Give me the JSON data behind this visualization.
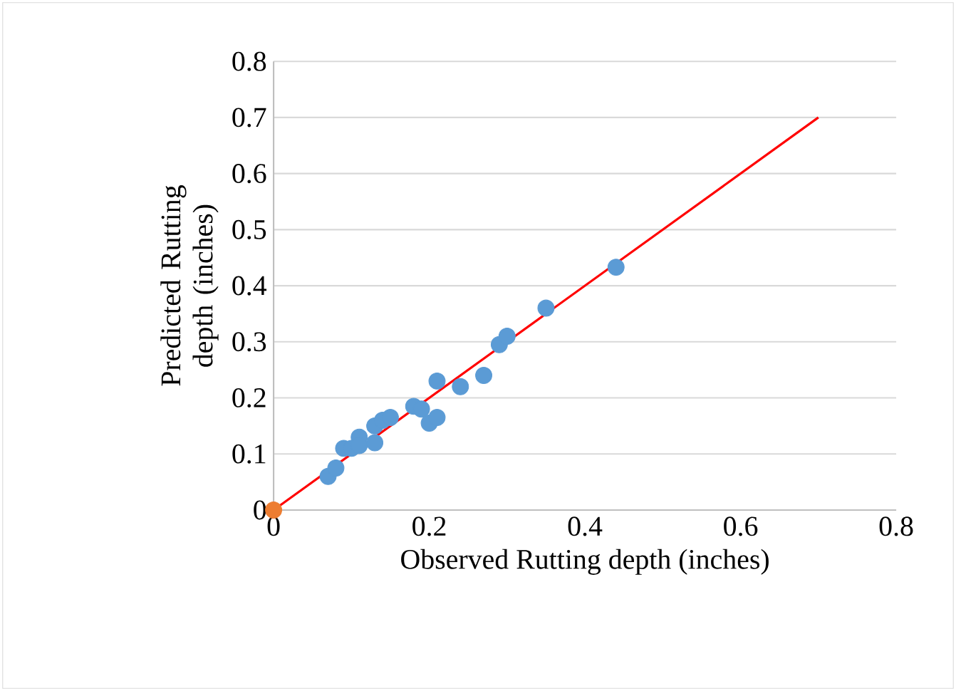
{
  "chart_data": {
    "type": "scatter",
    "xlabel": "Observed Rutting depth (inches)",
    "ylabel": "Predicted Rutting depth (inches)",
    "xlim": [
      0,
      0.8
    ],
    "ylim": [
      0,
      0.8
    ],
    "xticks": [
      0,
      0.2,
      0.4,
      0.6,
      0.8
    ],
    "yticks": [
      0,
      0.1,
      0.2,
      0.3,
      0.4,
      0.5,
      0.6,
      0.7,
      0.8
    ],
    "grid": "y",
    "marker": "circle",
    "series": [
      {
        "type": "line",
        "color": "#ff0000",
        "marker": "none",
        "x": [
          0,
          0.7
        ],
        "values": [
          0,
          0.7
        ]
      },
      {
        "color": "#5b9bd5",
        "x": [
          0.07,
          0.08,
          0.09,
          0.1,
          0.11,
          0.11,
          0.13,
          0.13,
          0.14,
          0.15,
          0.18,
          0.19,
          0.2,
          0.21,
          0.21,
          0.24,
          0.27,
          0.29,
          0.3,
          0.35,
          0.44
        ],
        "values": [
          0.06,
          0.075,
          0.11,
          0.11,
          0.13,
          0.115,
          0.15,
          0.12,
          0.16,
          0.165,
          0.185,
          0.18,
          0.155,
          0.165,
          0.23,
          0.22,
          0.24,
          0.295,
          0.31,
          0.36,
          0.433
        ]
      },
      {
        "color": "#ed7d31",
        "x": [
          0
        ],
        "values": [
          0
        ]
      }
    ]
  }
}
